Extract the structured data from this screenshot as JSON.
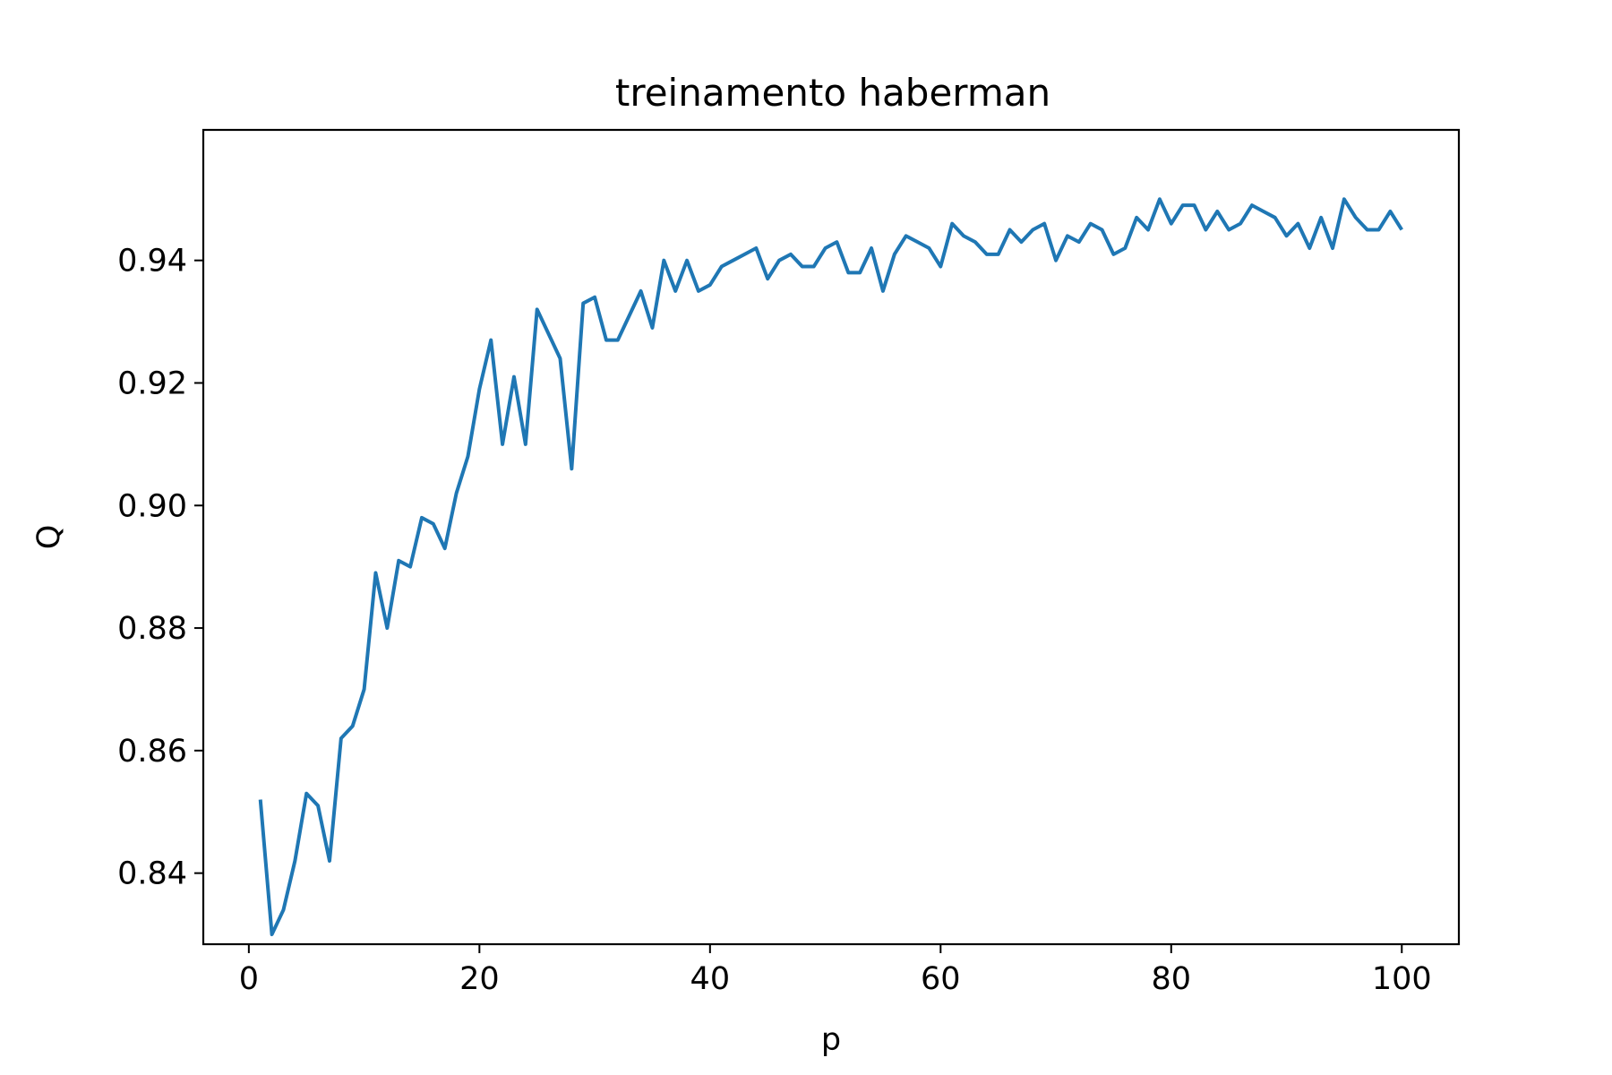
{
  "chart_data": {
    "type": "line",
    "title": "treinamento haberman",
    "xlabel": "p",
    "ylabel": "Q",
    "xlim": [
      -3.95,
      104.95
    ],
    "ylim": [
      0.8284,
      0.9613
    ],
    "xticks": [
      0,
      20,
      40,
      60,
      80,
      100
    ],
    "xtick_labels": [
      "0",
      "20",
      "40",
      "60",
      "80",
      "100"
    ],
    "yticks": [
      0.84,
      0.86,
      0.88,
      0.9,
      0.92,
      0.94
    ],
    "ytick_labels": [
      "0.84",
      "0.86",
      "0.88",
      "0.90",
      "0.92",
      "0.94"
    ],
    "grid": false,
    "line_color": "#1f77b4",
    "series": [
      {
        "x": [
          1,
          2,
          3,
          4,
          5,
          6,
          7,
          8,
          9,
          10,
          11,
          12,
          13,
          14,
          15,
          16,
          17,
          18,
          19,
          20,
          21,
          22,
          23,
          24,
          25,
          26,
          27,
          28,
          29,
          30,
          31,
          32,
          33,
          34,
          35,
          36,
          37,
          38,
          39,
          40,
          41,
          42,
          43,
          44,
          45,
          46,
          47,
          48,
          49,
          50,
          51,
          52,
          53,
          54,
          55,
          56,
          57,
          58,
          59,
          60,
          61,
          62,
          63,
          64,
          65,
          66,
          67,
          68,
          69,
          70,
          71,
          72,
          73,
          74,
          75,
          76,
          77,
          78,
          79,
          80,
          81,
          82,
          83,
          84,
          85,
          86,
          87,
          88,
          89,
          90,
          91,
          92,
          93,
          94,
          95,
          96,
          97,
          98,
          99,
          100
        ],
        "values": [
          0.852,
          0.83,
          0.834,
          0.842,
          0.853,
          0.851,
          0.842,
          0.862,
          0.864,
          0.87,
          0.889,
          0.88,
          0.891,
          0.89,
          0.898,
          0.897,
          0.893,
          0.902,
          0.908,
          0.919,
          0.927,
          0.91,
          0.921,
          0.91,
          0.932,
          0.928,
          0.924,
          0.906,
          0.933,
          0.934,
          0.927,
          0.927,
          0.931,
          0.935,
          0.929,
          0.94,
          0.935,
          0.94,
          0.935,
          0.936,
          0.939,
          0.94,
          0.941,
          0.942,
          0.937,
          0.94,
          0.941,
          0.939,
          0.939,
          0.942,
          0.943,
          0.938,
          0.938,
          0.942,
          0.935,
          0.941,
          0.944,
          0.943,
          0.942,
          0.939,
          0.946,
          0.944,
          0.943,
          0.941,
          0.941,
          0.945,
          0.943,
          0.945,
          0.946,
          0.94,
          0.944,
          0.943,
          0.946,
          0.945,
          0.941,
          0.942,
          0.947,
          0.945,
          0.95,
          0.946,
          0.949,
          0.949,
          0.945,
          0.948,
          0.945,
          0.946,
          0.949,
          0.948,
          0.947,
          0.944,
          0.946,
          0.942,
          0.947,
          0.942,
          0.95,
          0.947,
          0.945,
          0.945,
          0.948,
          0.945
        ]
      }
    ]
  }
}
